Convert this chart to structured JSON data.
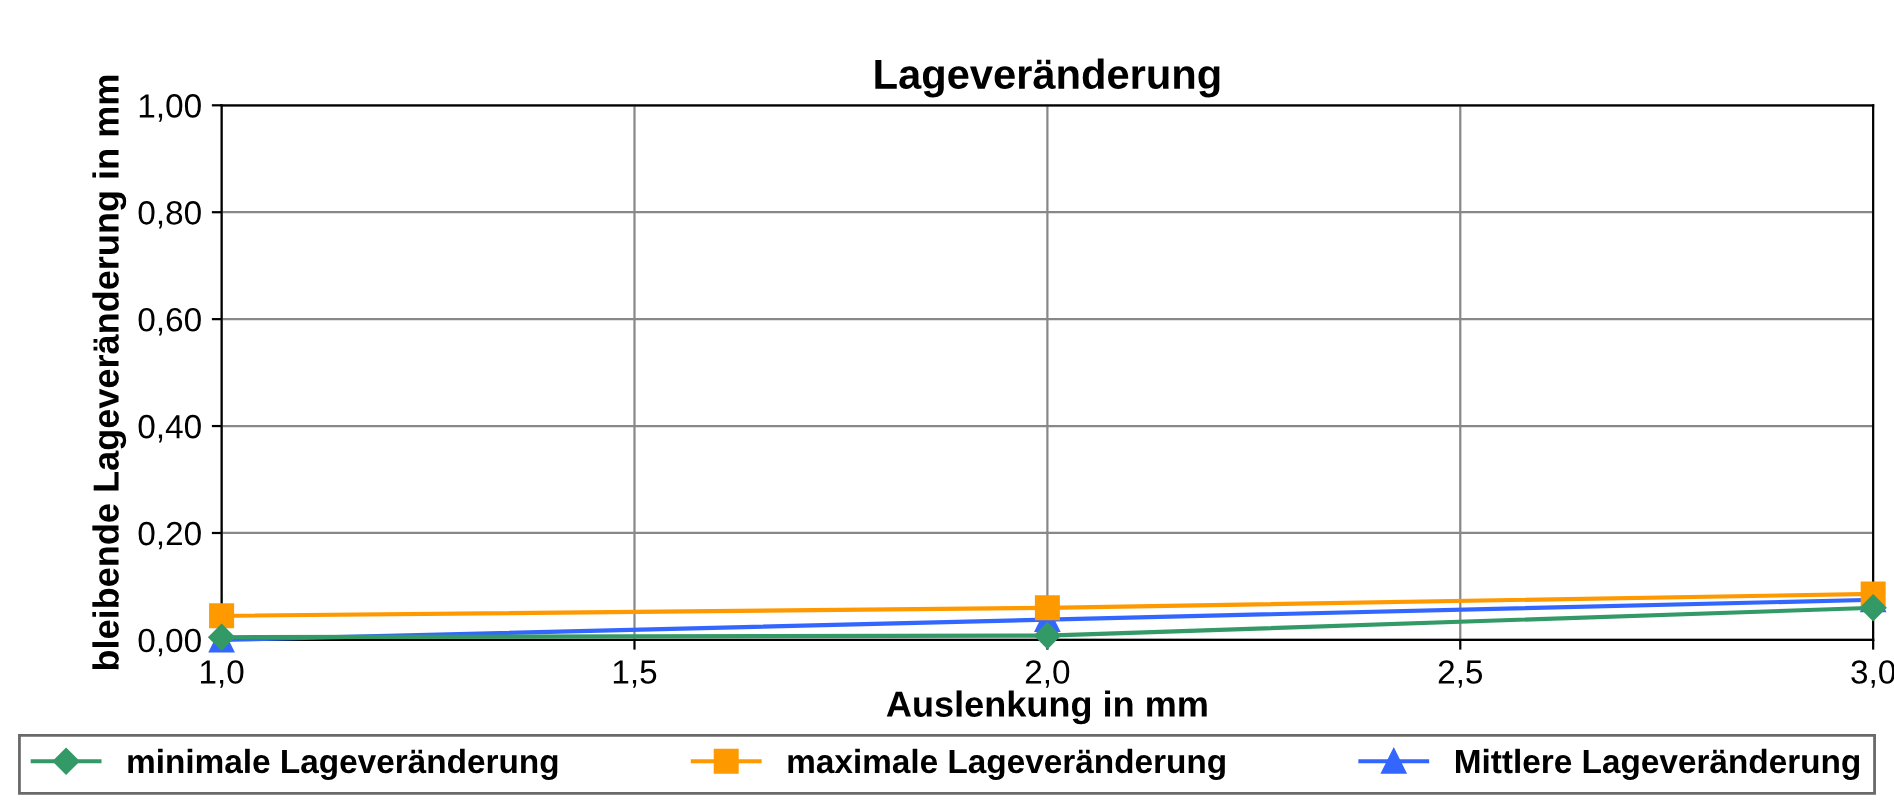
{
  "chart_data": {
    "type": "line",
    "title": "Lageveränderung",
    "xlabel": "Auslenkung in mm",
    "ylabel": "bleibende Lageveränderung in mm",
    "x": [
      1.0,
      2.0,
      3.0
    ],
    "series": [
      {
        "name": "minimale Lageveränderung",
        "color": "#339966",
        "marker": "diamond",
        "values": [
          0.005,
          0.008,
          0.06
        ]
      },
      {
        "name": "maximale Lageveränderung",
        "color": "#ff9900",
        "marker": "square",
        "values": [
          0.045,
          0.06,
          0.086
        ]
      },
      {
        "name": "Mittlere Lageveränderung",
        "color": "#3366ff",
        "marker": "triangle",
        "values": [
          0.0,
          0.038,
          0.075
        ]
      }
    ],
    "xlim": [
      1.0,
      3.0
    ],
    "ylim": [
      0,
      1.0
    ],
    "xticks": [
      {
        "value": 1.0,
        "label": "1,0"
      },
      {
        "value": 1.5,
        "label": "1,5"
      },
      {
        "value": 2.0,
        "label": "2,0"
      },
      {
        "value": 2.5,
        "label": "2,5"
      },
      {
        "value": 3.0,
        "label": "3,0"
      }
    ],
    "yticks": [
      {
        "value": 0,
        "label": "0,00"
      },
      {
        "value": 0.2,
        "label": "0,20"
      },
      {
        "value": 0.4,
        "label": "0,40"
      },
      {
        "value": 0.6,
        "label": "0,60"
      },
      {
        "value": 0.8,
        "label": "0,80"
      },
      {
        "value": 1.0,
        "label": "1,00"
      }
    ],
    "grid": true,
    "legend": "bottom"
  }
}
